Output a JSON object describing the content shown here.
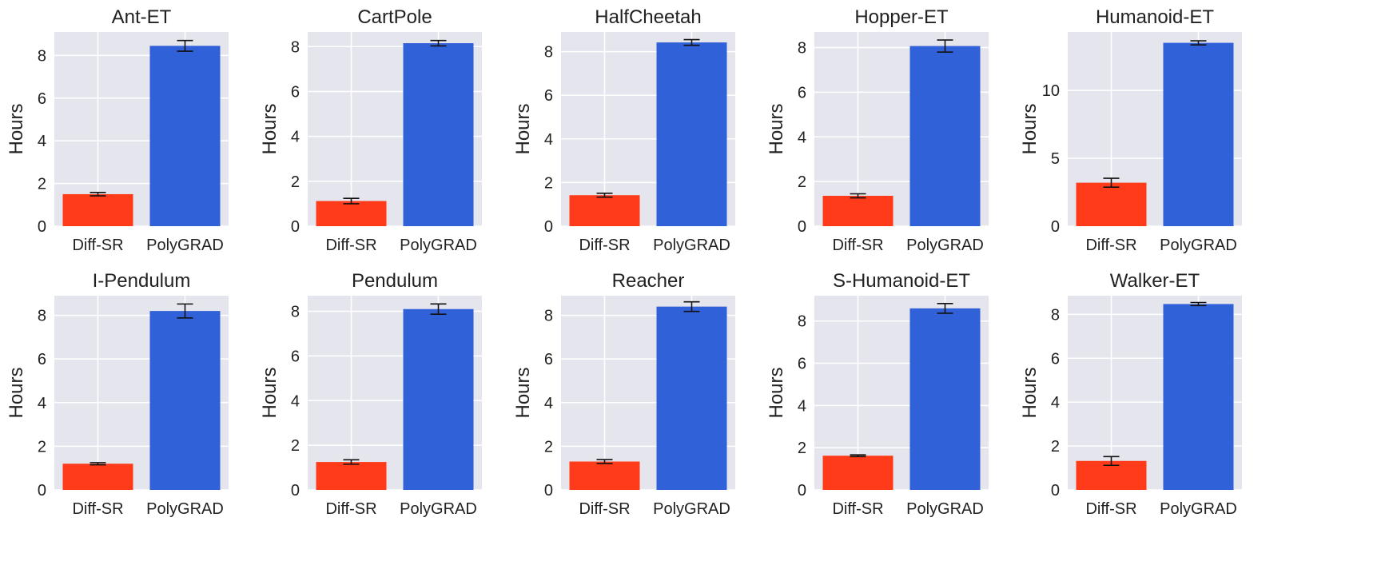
{
  "colors": {
    "plot_bg": "#e5e5ee",
    "grid": "#ffffff",
    "diff_sr": "#ff3b1a",
    "polygrad": "#3061d8",
    "text": "#222222",
    "errorbar": "#111111"
  },
  "chart_data": [
    {
      "type": "bar",
      "title": "Ant-ET",
      "ylabel": "Hours",
      "categories": [
        "Diff-SR",
        "PolyGRAD"
      ],
      "values": [
        1.5,
        8.45
      ],
      "errors": [
        0.08,
        0.25
      ],
      "ylim": [
        0,
        9.1
      ],
      "yticks": [
        0,
        2,
        4,
        6,
        8
      ],
      "grid": true
    },
    {
      "type": "bar",
      "title": "CartPole",
      "ylabel": "Hours",
      "categories": [
        "Diff-SR",
        "PolyGRAD"
      ],
      "values": [
        1.12,
        8.15
      ],
      "errors": [
        0.12,
        0.12
      ],
      "ylim": [
        0,
        8.65
      ],
      "yticks": [
        0,
        2,
        4,
        6,
        8
      ],
      "grid": true
    },
    {
      "type": "bar",
      "title": "HalfCheetah",
      "ylabel": "Hours",
      "categories": [
        "Diff-SR",
        "PolyGRAD"
      ],
      "values": [
        1.42,
        8.42
      ],
      "errors": [
        0.09,
        0.13
      ],
      "ylim": [
        0,
        8.9
      ],
      "yticks": [
        0,
        2,
        4,
        6,
        8
      ],
      "grid": true
    },
    {
      "type": "bar",
      "title": "Hopper-ET",
      "ylabel": "Hours",
      "categories": [
        "Diff-SR",
        "PolyGRAD"
      ],
      "values": [
        1.36,
        8.07
      ],
      "errors": [
        0.09,
        0.27
      ],
      "ylim": [
        0,
        8.7
      ],
      "yticks": [
        0,
        2,
        4,
        6,
        8
      ],
      "grid": true
    },
    {
      "type": "bar",
      "title": "Humanoid-ET",
      "ylabel": "Hours",
      "categories": [
        "Diff-SR",
        "PolyGRAD"
      ],
      "values": [
        3.2,
        13.5
      ],
      "errors": [
        0.33,
        0.15
      ],
      "ylim": [
        0,
        14.3
      ],
      "yticks": [
        0,
        5,
        10
      ],
      "grid": true
    },
    {
      "type": "bar",
      "title": "I-Pendulum",
      "ylabel": "Hours",
      "categories": [
        "Diff-SR",
        "PolyGRAD"
      ],
      "values": [
        1.2,
        8.2
      ],
      "errors": [
        0.05,
        0.32
      ],
      "ylim": [
        0,
        8.9
      ],
      "yticks": [
        0,
        2,
        4,
        6,
        8
      ],
      "grid": true
    },
    {
      "type": "bar",
      "title": "Pendulum",
      "ylabel": "Hours",
      "categories": [
        "Diff-SR",
        "PolyGRAD"
      ],
      "values": [
        1.25,
        8.1
      ],
      "errors": [
        0.1,
        0.23
      ],
      "ylim": [
        0,
        8.7
      ],
      "yticks": [
        0,
        2,
        4,
        6,
        8
      ],
      "grid": true
    },
    {
      "type": "bar",
      "title": "Reacher",
      "ylabel": "Hours",
      "categories": [
        "Diff-SR",
        "PolyGRAD"
      ],
      "values": [
        1.3,
        8.4
      ],
      "errors": [
        0.09,
        0.22
      ],
      "ylim": [
        0,
        8.9
      ],
      "yticks": [
        0,
        2,
        4,
        6,
        8
      ],
      "grid": true
    },
    {
      "type": "bar",
      "title": "S-Humanoid-ET",
      "ylabel": "Hours",
      "categories": [
        "Diff-SR",
        "PolyGRAD"
      ],
      "values": [
        1.62,
        8.6
      ],
      "errors": [
        0.04,
        0.23
      ],
      "ylim": [
        0,
        9.2
      ],
      "yticks": [
        0,
        2,
        4,
        6,
        8
      ],
      "grid": true
    },
    {
      "type": "bar",
      "title": "Walker-ET",
      "ylabel": "Hours",
      "categories": [
        "Diff-SR",
        "PolyGRAD"
      ],
      "values": [
        1.32,
        8.47
      ],
      "errors": [
        0.2,
        0.07
      ],
      "ylim": [
        0,
        8.85
      ],
      "yticks": [
        0,
        2,
        4,
        6,
        8
      ],
      "grid": true
    }
  ]
}
